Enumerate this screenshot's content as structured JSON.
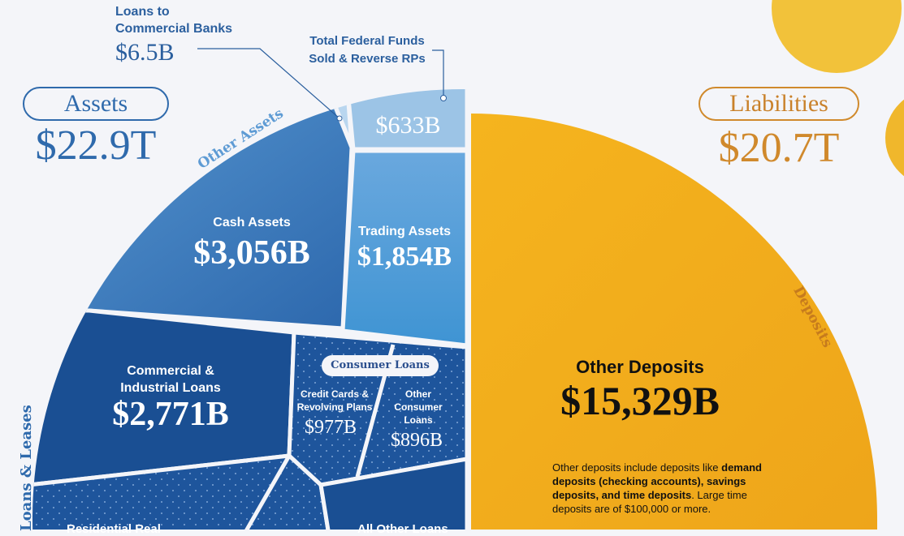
{
  "assets": {
    "label": "Assets",
    "total": "$22.9T"
  },
  "liabilities": {
    "label": "Liabilities",
    "total": "$20.7T"
  },
  "groups": {
    "other_assets": "Other Assets",
    "loans_leases": "Loans & Leases",
    "consumer_loans": "Consumer Loans",
    "deposits": "Deposits"
  },
  "cells": {
    "loans_to_banks": {
      "label1": "Loans to",
      "label2": "Commercial Banks",
      "value": "$6.5B"
    },
    "fed_funds": {
      "label1": "Total Federal Funds",
      "label2": "Sold & Reverse RPs",
      "value": "$633B"
    },
    "cash": {
      "label": "Cash Assets",
      "value": "$3,056B"
    },
    "trading": {
      "label": "Trading Assets",
      "value": "$1,854B"
    },
    "ci_loans": {
      "label1": "Commercial &",
      "label2": "Industrial Loans",
      "value": "$2,771B"
    },
    "credit_cards": {
      "label1": "Credit Cards &",
      "label2": "Revolving Plans",
      "value": "$977B"
    },
    "other_consumer": {
      "label1": "Other",
      "label2": "Consumer",
      "label3": "Loans",
      "value": "$896B"
    },
    "residential": {
      "label": "Residential Real"
    },
    "all_other": {
      "label": "All Other Loans"
    },
    "other_deposits": {
      "label": "Other Deposits",
      "value": "$15,329B"
    }
  },
  "note": {
    "p1": "Other deposits include deposits like ",
    "b1": "demand deposits (checking accounts), savings deposits, and time deposits",
    "p2": ". Large time deposits are of $100,000 or more."
  },
  "colors": {
    "assets": "#2f6aac",
    "liabilities": "#f2ae1c",
    "liabilities_text": "#c9812a"
  },
  "chart_data": {
    "type": "pie",
    "series": [
      {
        "name": "Assets",
        "categories": [
          "Loans to Commercial Banks",
          "Total Federal Funds Sold & Reverse RPs",
          "Cash Assets",
          "Trading Assets",
          "Commercial & Industrial Loans",
          "Credit Cards & Revolving Plans",
          "Other Consumer Loans"
        ],
        "values": [
          6.5,
          633,
          3056,
          1854,
          2771,
          977,
          896
        ],
        "unit": "$B"
      },
      {
        "name": "Liabilities",
        "categories": [
          "Other Deposits"
        ],
        "values": [
          15329
        ],
        "unit": "$B"
      }
    ]
  }
}
